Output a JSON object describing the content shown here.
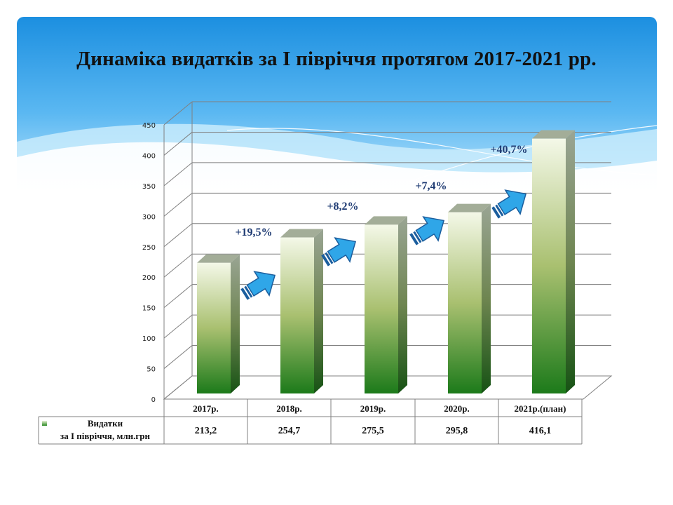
{
  "slide": {
    "title": "Динаміка видатків за І півріччя протягом 2017-2021 рр."
  },
  "colors": {
    "banner_top": "#1c8fe0",
    "banner_bottom": "#bfe6fb",
    "bar_top": "#f4f8e8",
    "bar_mid": "#a9c070",
    "bar_bottom": "#1c7a1a",
    "arrow": "#2fa6e8",
    "growth_label": "#1f3b73"
  },
  "chart_data": {
    "type": "bar",
    "title": "Динаміка видатків за І півріччя протягом 2017-2021 рр.",
    "categories": [
      "2017р.",
      "2018р.",
      "2019р.",
      "2020р.",
      "2021р.(план)"
    ],
    "series": [
      {
        "name": "Видатки за І півріччя, млн.грн",
        "legend_lines": [
          "Видатки",
          "за І півріччя, млн.грн"
        ],
        "values": [
          213.2,
          254.7,
          275.5,
          295.8,
          416.1
        ],
        "value_labels": [
          "213,2",
          "254,7",
          "275,5",
          "295,8",
          "416,1"
        ]
      }
    ],
    "yticks": [
      0,
      50,
      100,
      150,
      200,
      250,
      300,
      350,
      400,
      450
    ],
    "ylim": [
      0,
      450
    ],
    "growth_labels": [
      "+19,5%",
      "+8,2%",
      "+7,4%",
      "+40,7%"
    ],
    "data_table": true,
    "grid": true
  }
}
